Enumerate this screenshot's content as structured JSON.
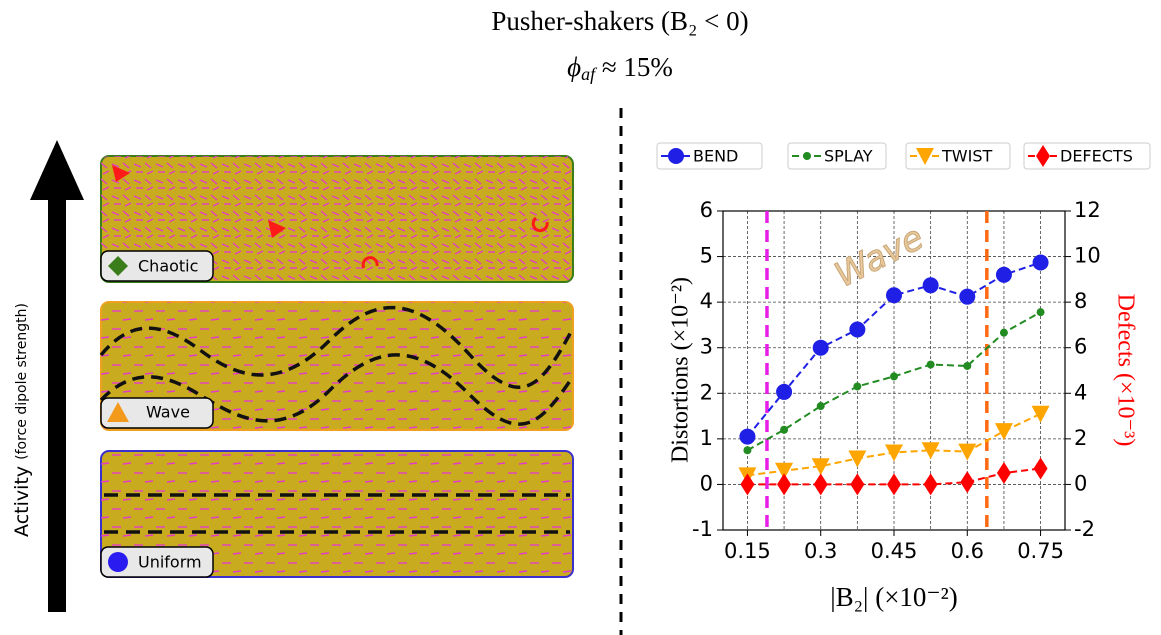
{
  "title": "Pusher-shakers (B₂ < 0)",
  "subtitle": {
    "symbol": "ϕ",
    "subscript": "af",
    "rest": " ≈ 15%"
  },
  "diagram": {
    "axis_label": "Activity",
    "axis_label_note": "(force dipole strength)",
    "panels": [
      {
        "label": "Chaotic"
      },
      {
        "label": "Wave"
      },
      {
        "label": "Uniform"
      }
    ]
  },
  "chart_data": {
    "type": "line",
    "x": [
      0.15,
      0.225,
      0.3,
      0.375,
      0.45,
      0.525,
      0.6,
      0.675,
      0.75
    ],
    "series": [
      {
        "name": "BEND",
        "color": "#1f1fe6",
        "marker": "circle",
        "values": [
          1.05,
          2.03,
          3.0,
          3.4,
          4.15,
          4.37,
          4.12,
          4.6,
          4.87
        ]
      },
      {
        "name": "SPLAY",
        "color": "#228b22",
        "marker": "dot",
        "values": [
          0.75,
          1.2,
          1.72,
          2.15,
          2.37,
          2.63,
          2.6,
          3.33,
          3.78
        ]
      },
      {
        "name": "TWIST",
        "color": "#ffa500",
        "marker": "triangle-down",
        "values": [
          0.2,
          0.3,
          0.4,
          0.57,
          0.7,
          0.75,
          0.72,
          1.17,
          1.55
        ]
      },
      {
        "name": "DEFECTS",
        "color": "#ff0000",
        "marker": "diamond",
        "axis": "y2",
        "values": [
          0,
          0,
          0,
          0,
          0,
          0,
          0.1,
          0.5,
          0.7
        ]
      }
    ],
    "xlim": [
      0.1,
      0.8
    ],
    "xticks": [
      {
        "value": 0.15,
        "label": "0.15"
      },
      {
        "value": 0.3,
        "label": "0.3"
      },
      {
        "value": 0.45,
        "label": "0.45"
      },
      {
        "value": 0.6,
        "label": "0.6"
      },
      {
        "value": 0.75,
        "label": "0.75"
      }
    ],
    "ylim": [
      -1,
      6
    ],
    "yticks": [
      -1,
      0,
      1,
      2,
      3,
      4,
      5,
      6
    ],
    "y2lim": [
      -2,
      12
    ],
    "y2ticks": [
      -2,
      0,
      2,
      4,
      6,
      8,
      10,
      12
    ],
    "xlabel": "|B₂| (×10⁻²)",
    "ylabel": "Distortions (×10⁻²)",
    "y2label": "Defects (×10⁻³)",
    "grid": true,
    "legend": "top",
    "vlines": [
      {
        "x": 0.19,
        "color": "#e61ee6"
      },
      {
        "x": 0.64,
        "color": "#ff6a13"
      }
    ],
    "annotation": "Wave"
  }
}
